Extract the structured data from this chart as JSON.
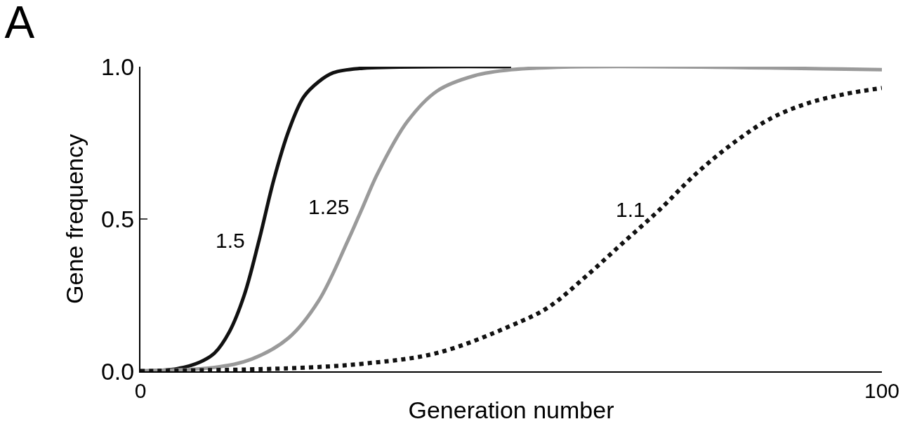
{
  "chart_data": {
    "type": "line",
    "title": "A",
    "xlabel": "Generation number",
    "ylabel": "Gene frequency",
    "xlim": [
      0,
      100
    ],
    "xticks": [
      0,
      100
    ],
    "ylim": [
      0,
      1
    ],
    "yticks": [
      {
        "value": 0,
        "label": "0.0"
      },
      {
        "value": 0.5,
        "label": "0.5"
      },
      {
        "value": 1,
        "label": "1.0"
      }
    ],
    "legend": false,
    "marker": "none",
    "series": [
      {
        "name": "1.5",
        "color": "#111111",
        "line_style": "solid",
        "x": [
          0,
          5,
          8,
          10,
          12,
          14,
          16,
          18,
          20,
          22,
          24,
          26,
          30,
          40,
          50
        ],
        "values": [
          0.001,
          0.009,
          0.03,
          0.06,
          0.13,
          0.25,
          0.43,
          0.63,
          0.79,
          0.9,
          0.95,
          0.98,
          0.995,
          1,
          1
        ]
      },
      {
        "name": "1.25",
        "color": "#9a9a9a",
        "line_style": "solid",
        "x": [
          0,
          10,
          15,
          20,
          24,
          28,
          30,
          32,
          36,
          40,
          45,
          50,
          60,
          100
        ],
        "values": [
          0.002,
          0.013,
          0.04,
          0.11,
          0.23,
          0.43,
          0.54,
          0.65,
          0.82,
          0.92,
          0.97,
          0.99,
          1,
          0.99
        ]
      },
      {
        "name": "1.1",
        "color": "#111111",
        "line_style": "dotted",
        "x": [
          0,
          20,
          30,
          40,
          50,
          55,
          60,
          65,
          70,
          75,
          80,
          85,
          90,
          95,
          100
        ],
        "values": [
          0.001,
          0.01,
          0.025,
          0.06,
          0.15,
          0.21,
          0.31,
          0.42,
          0.53,
          0.65,
          0.75,
          0.83,
          0.88,
          0.91,
          0.93
        ]
      }
    ]
  }
}
